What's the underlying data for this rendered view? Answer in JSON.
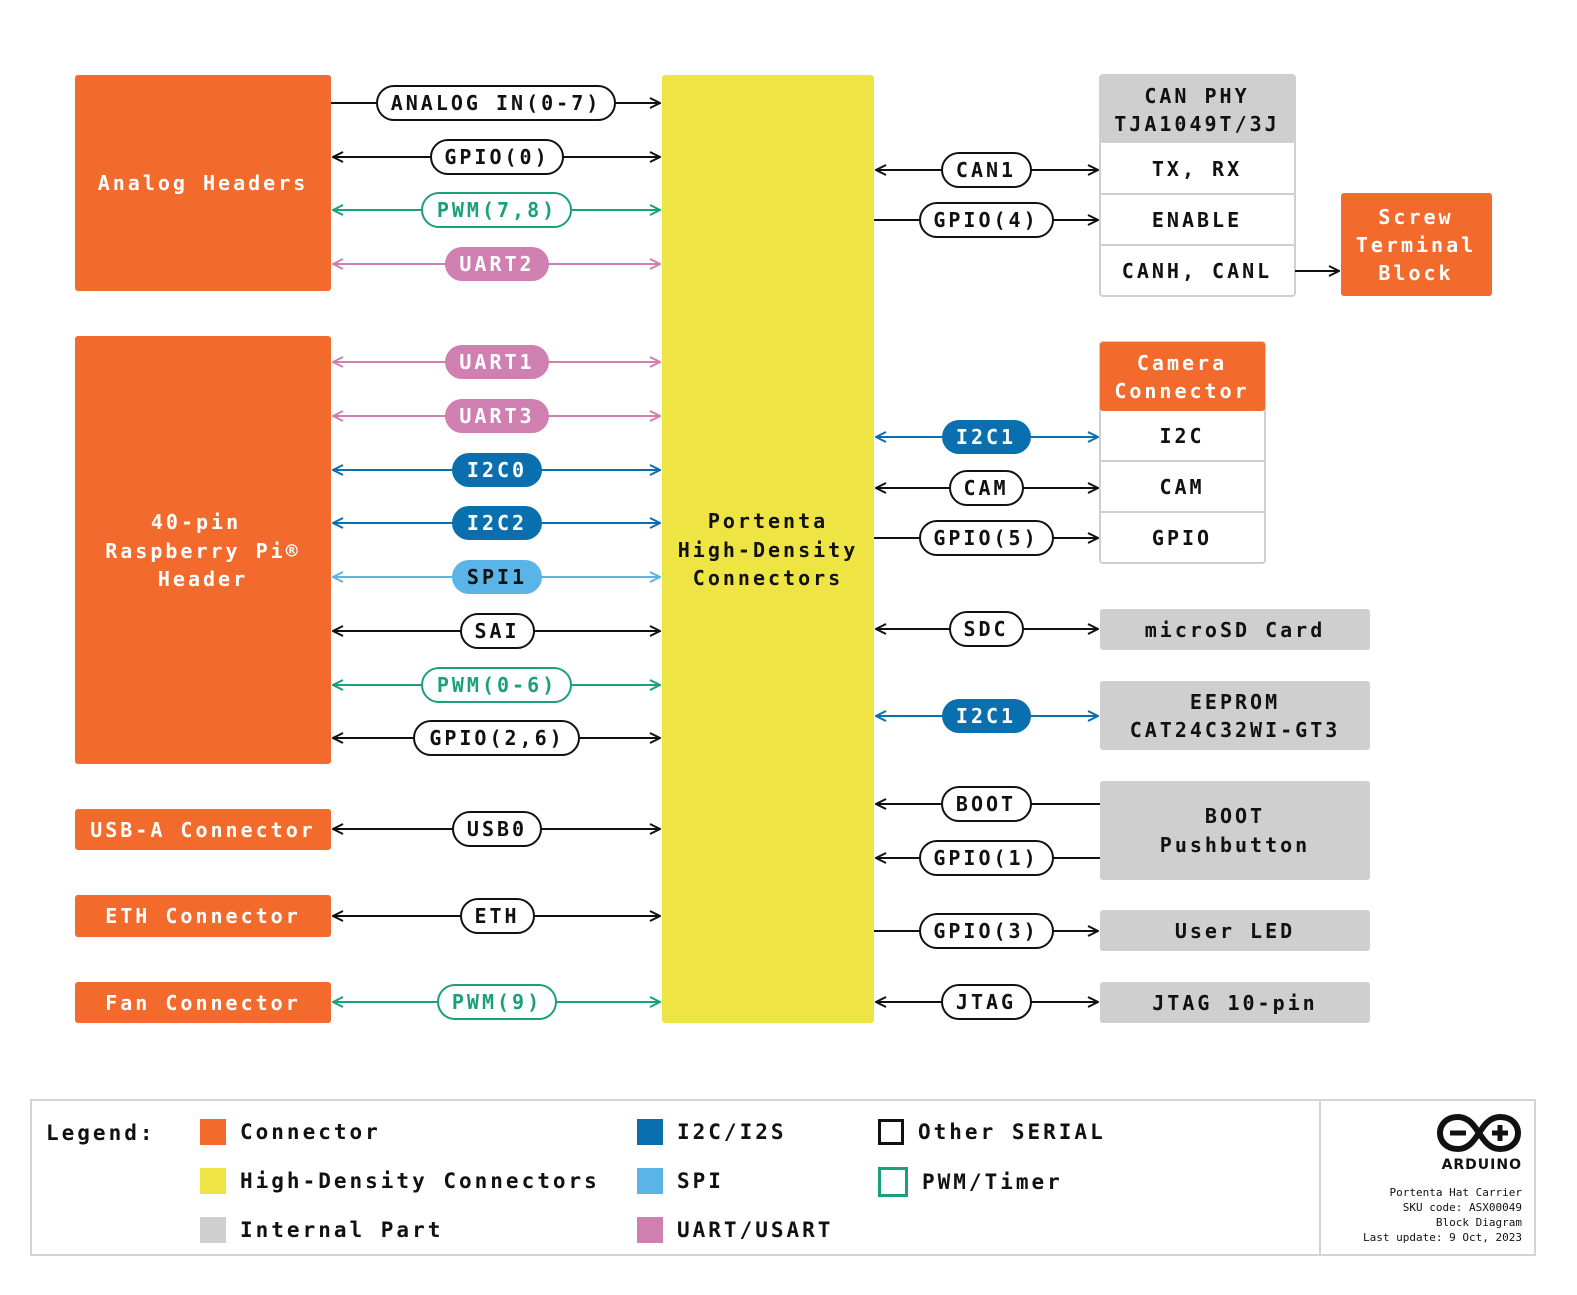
{
  "colors": {
    "connector": "#f26a2c",
    "high_density": "#eee544",
    "internal": "#cfcfcf",
    "i2c": "#0a6fae",
    "spi": "#5ab4e8",
    "uart": "#cf7fb0",
    "pwm": "#1aa07a",
    "other": "#111111"
  },
  "blocks": {
    "analog_headers": "Analog Headers",
    "rpi_header": [
      "40-pin",
      "Raspberry Pi®",
      "Header"
    ],
    "usb_a": "USB-A Connector",
    "eth": "ETH Connector",
    "fan": "Fan Connector",
    "portenta": [
      "Portenta",
      "High-Density",
      "Connectors"
    ],
    "can_phy": {
      "title": [
        "CAN PHY",
        "TJA1049T/3J"
      ],
      "rows": [
        "TX, RX",
        "ENABLE",
        "CANH, CANL"
      ]
    },
    "screw_terminal": [
      "Screw",
      "Terminal",
      "Block"
    ],
    "camera": {
      "title": [
        "Camera",
        "Connector"
      ],
      "rows": [
        "I2C",
        "CAM",
        "GPIO"
      ]
    },
    "microsd": "microSD Card",
    "eeprom": [
      "EEPROM",
      "CAT24C32WI-GT3"
    ],
    "boot": [
      "BOOT",
      "Pushbutton"
    ],
    "user_led": "User LED",
    "jtag": "JTAG 10-pin"
  },
  "left_signals": [
    {
      "label": "ANALOG IN(0-7)",
      "category": "other",
      "direction": "right"
    },
    {
      "label": "GPIO(0)",
      "category": "other",
      "direction": "both"
    },
    {
      "label": "PWM(7,8)",
      "category": "pwm",
      "direction": "both"
    },
    {
      "label": "UART2",
      "category": "uart",
      "direction": "both"
    },
    {
      "label": "UART1",
      "category": "uart",
      "direction": "both"
    },
    {
      "label": "UART3",
      "category": "uart",
      "direction": "both"
    },
    {
      "label": "I2C0",
      "category": "i2c",
      "direction": "both"
    },
    {
      "label": "I2C2",
      "category": "i2c",
      "direction": "both"
    },
    {
      "label": "SPI1",
      "category": "spi",
      "direction": "both"
    },
    {
      "label": "SAI",
      "category": "other",
      "direction": "both"
    },
    {
      "label": "PWM(0-6)",
      "category": "pwm",
      "direction": "both"
    },
    {
      "label": "GPIO(2,6)",
      "category": "other",
      "direction": "both"
    },
    {
      "label": "USB0",
      "category": "other",
      "direction": "both"
    },
    {
      "label": "ETH",
      "category": "other",
      "direction": "both"
    },
    {
      "label": "PWM(9)",
      "category": "pwm",
      "direction": "both"
    }
  ],
  "right_signals": [
    {
      "label": "CAN1",
      "category": "other",
      "direction": "both"
    },
    {
      "label": "GPIO(4)",
      "category": "other",
      "direction": "right"
    },
    {
      "label": "CANH, CANL link",
      "category": "other",
      "direction": "right"
    },
    {
      "label": "I2C1",
      "category": "i2c",
      "direction": "both"
    },
    {
      "label": "CAM",
      "category": "other",
      "direction": "both"
    },
    {
      "label": "GPIO(5)",
      "category": "other",
      "direction": "right"
    },
    {
      "label": "SDC",
      "category": "other",
      "direction": "both"
    },
    {
      "label": "I2C1",
      "category": "i2c",
      "direction": "both"
    },
    {
      "label": "BOOT",
      "category": "other",
      "direction": "left"
    },
    {
      "label": "GPIO(1)",
      "category": "other",
      "direction": "left"
    },
    {
      "label": "GPIO(3)",
      "category": "other",
      "direction": "right"
    },
    {
      "label": "JTAG",
      "category": "other",
      "direction": "both"
    }
  ],
  "legend": {
    "title": "Legend:",
    "items": [
      {
        "label": "Connector",
        "swatch": "#f26a2c",
        "outline": false
      },
      {
        "label": "High-Density Connectors",
        "swatch": "#eee544",
        "outline": false
      },
      {
        "label": "Internal Part",
        "swatch": "#cfcfcf",
        "outline": false
      },
      {
        "label": "I2C/I2S",
        "swatch": "#0a6fae",
        "outline": false
      },
      {
        "label": "SPI",
        "swatch": "#5ab4e8",
        "outline": false
      },
      {
        "label": "UART/USART",
        "swatch": "#cf7fb0",
        "outline": false
      },
      {
        "label": "Other SERIAL",
        "swatch": "#111111",
        "outline": true
      },
      {
        "label": "PWM/Timer",
        "swatch": "#1aa07a",
        "outline": true
      }
    ]
  },
  "footer": {
    "brand": "ARDUINO",
    "product": "Portenta Hat Carrier",
    "sku": "SKU code: ASX00049",
    "doc_type": "Block Diagram",
    "updated": "Last update: 9 Oct, 2023"
  }
}
